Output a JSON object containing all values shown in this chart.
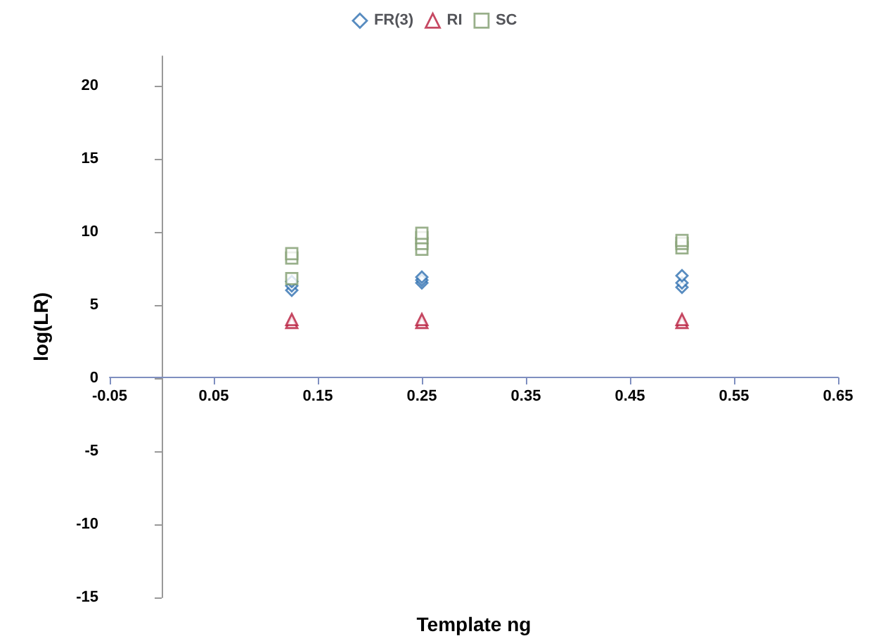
{
  "chart_data": {
    "type": "scatter",
    "xlabel": "Template ng",
    "ylabel": "log(LR)",
    "xlim": [
      -0.05,
      0.65
    ],
    "xticks": [
      -0.05,
      0.05,
      0.15,
      0.25,
      0.35,
      0.45,
      0.55,
      0.65
    ],
    "ylim": [
      -15,
      22
    ],
    "yticks": [
      -15,
      -10,
      -5,
      0,
      5,
      10,
      15,
      20
    ],
    "grid": false,
    "legend": "top",
    "series": [
      {
        "name": "FR(3)",
        "color": "#2e6fb0",
        "marker": "diamond",
        "x": [
          0.125,
          0.125,
          0.125,
          0.25,
          0.25,
          0.25,
          0.5,
          0.5,
          0.5
        ],
        "values": [
          6.0,
          6.3,
          6.6,
          6.5,
          6.7,
          6.9,
          6.2,
          6.5,
          7.0
        ]
      },
      {
        "name": "RI",
        "color": "#b81c3c",
        "marker": "triangle",
        "x": [
          0.125,
          0.125,
          0.25,
          0.25,
          0.5,
          0.5
        ],
        "values": [
          3.8,
          4.0,
          3.8,
          4.0,
          3.8,
          4.0
        ]
      },
      {
        "name": "SC",
        "color": "#7f9c6e",
        "marker": "square",
        "x": [
          0.125,
          0.125,
          0.125,
          0.25,
          0.25,
          0.25,
          0.25,
          0.5,
          0.5,
          0.5
        ],
        "values": [
          6.8,
          8.2,
          8.5,
          8.8,
          9.2,
          9.6,
          9.9,
          8.9,
          9.2,
          9.4
        ]
      }
    ]
  }
}
